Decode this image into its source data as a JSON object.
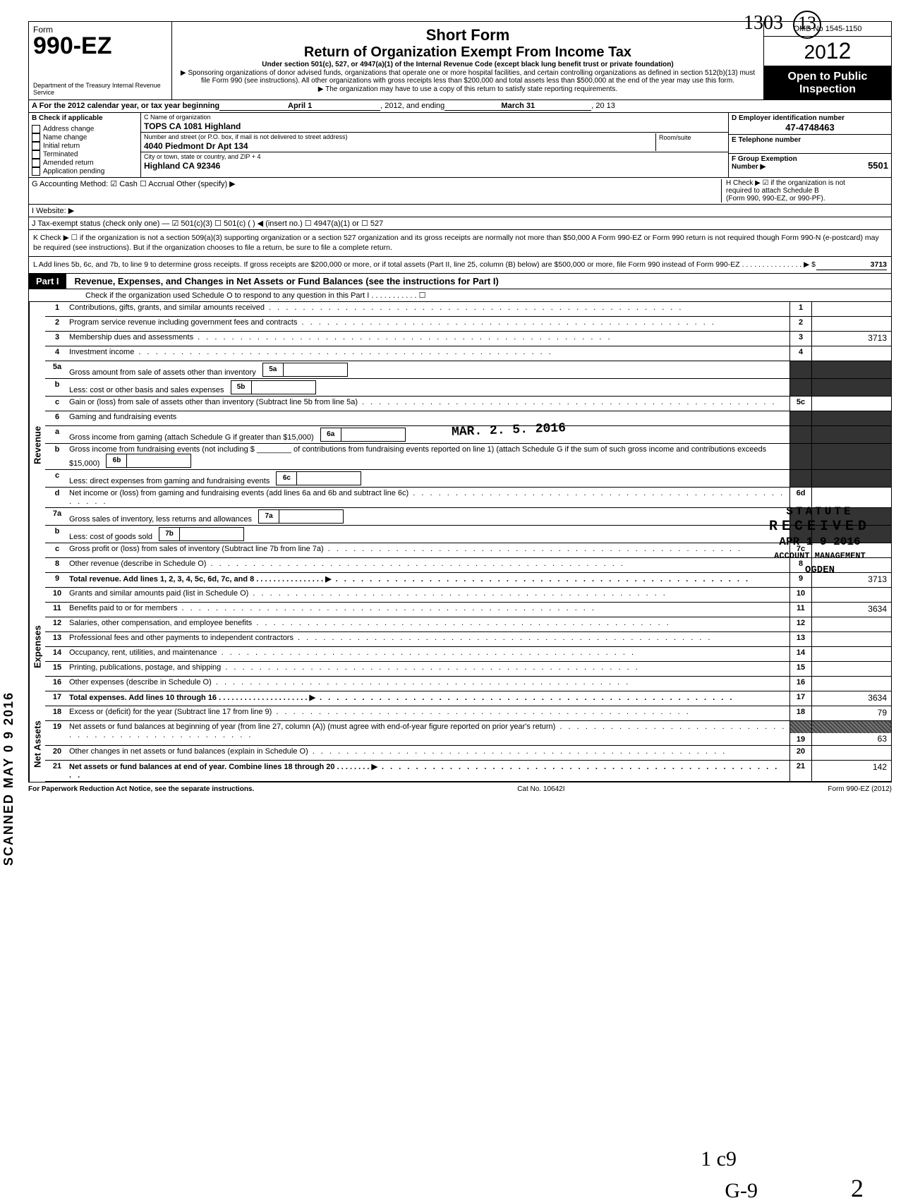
{
  "handwritten_top": "1303",
  "circled_page": "13",
  "form": {
    "label": "Form",
    "number": "990-EZ",
    "dept": "Department of the Treasury\nInternal Revenue Service",
    "short_form": "Short Form",
    "return_title": "Return of Organization Exempt From Income Tax",
    "subtitle1": "Under section 501(c), 527, or 4947(a)(1) of the Internal Revenue Code\n(except black lung benefit trust or private foundation)",
    "subtitle2": "▶ Sponsoring organizations of donor advised funds, organizations that operate one or more hospital facilities, and certain controlling organizations as defined in section 512(b)(13) must file Form 990 (see instructions). All other organizations with gross receipts less than $200,000 and total assets less than $500,000 at the end of the year may use this form.",
    "subtitle3": "▶ The organization may have to use a copy of this return to satisfy state reporting requirements.",
    "omb": "OMB No 1545-1150",
    "year_prefix": "20",
    "year": "12",
    "open1": "Open to Public",
    "open2": "Inspection"
  },
  "line_a": {
    "prefix": "A  For the 2012 calendar year, or tax year beginning",
    "begin": "April 1",
    "mid": ", 2012, and ending",
    "end": "March 31",
    "tail": ", 20  13"
  },
  "col_b": {
    "head": "B  Check if applicable",
    "opts": [
      "Address change",
      "Name change",
      "Initial return",
      "Terminated",
      "Amended return",
      "Application pending"
    ]
  },
  "col_c": {
    "name_label": "C  Name of organization",
    "name": "TOPS CA 1081 Highland",
    "addr_label": "Number and street (or P.O. box, if mail is not delivered to street address)",
    "addr": "4040 Piedmont Dr Apt 134",
    "city_label": "City or town, state or country, and ZIP + 4",
    "city": "Highland CA 92346",
    "room_label": "Room/suite"
  },
  "col_d": {
    "label": "D Employer identification number",
    "value": "47-4748463"
  },
  "col_e": {
    "label": "E  Telephone number",
    "value": ""
  },
  "col_f": {
    "label": "F  Group Exemption\n    Number ▶",
    "value": "5501"
  },
  "line_g": "G  Accounting Method:   ☑ Cash    ☐ Accrual    Other (specify) ▶",
  "line_h": "H  Check ▶ ☑ if the organization is not\nrequired to attach Schedule B\n(Form 990, 990-EZ, or 990-PF).",
  "line_i": "I   Website: ▶",
  "line_j": "J  Tax-exempt status (check only one) —  ☑ 501(c)(3)   ☐ 501(c) (      ) ◀ (insert no.)  ☐ 4947(a)(1) or   ☐ 527",
  "line_k": "K  Check ▶  ☐  if the organization is not a section 509(a)(3) supporting organization or a section 527 organization and its gross receipts are normally not more than $50,000  A Form 990-EZ or Form 990 return is not required though Form 990-N (e-postcard) may be required (see instructions). But if the organization chooses to file a return, be sure to file a complete return.",
  "line_l": {
    "text": "L  Add lines 5b, 6c, and 7b, to line 9 to determine gross receipts. If gross receipts are $200,000 or more, or if total assets (Part II, line 25, column (B) below) are $500,000 or more, file Form 990 instead of Form 990-EZ   . . . . . . . . . . . . . . . ▶  $",
    "value": "3713"
  },
  "part1": {
    "tag": "Part I",
    "title": "Revenue, Expenses, and Changes in Net Assets or Fund Balances (see the instructions for Part I)",
    "check": "Check if the organization used Schedule O to respond to any question in this Part I  . . . . . . . . . . . ☐"
  },
  "stamps": {
    "received1": "MAR. 2. 5. 2016",
    "statute": "STATUTE",
    "received": "RECEIVED",
    "date": "APR 1 9 2016",
    "acct": "ACCOUNT MANAGEMENT",
    "ogden": "OGDEN"
  },
  "side_scanned": "SCANNED  MAY 0 9 2016",
  "revenue": [
    {
      "n": "1",
      "d": "Contributions, gifts, grants, and similar amounts received",
      "r": "1",
      "v": ""
    },
    {
      "n": "2",
      "d": "Program service revenue including government fees and contracts",
      "r": "2",
      "v": ""
    },
    {
      "n": "3",
      "d": "Membership dues and assessments",
      "r": "3",
      "v": "3713"
    },
    {
      "n": "4",
      "d": "Investment income",
      "r": "4",
      "v": ""
    }
  ],
  "rev_5a": {
    "n": "5a",
    "d": "Gross amount from sale of assets other than inventory",
    "mn": "5a"
  },
  "rev_5b": {
    "n": "b",
    "d": "Less: cost or other basis and sales expenses",
    "mn": "5b"
  },
  "rev_5c": {
    "n": "c",
    "d": "Gain or (loss) from sale of assets other than inventory (Subtract line 5b from line 5a)",
    "r": "5c",
    "v": ""
  },
  "rev_6": {
    "n": "6",
    "d": "Gaming and fundraising events"
  },
  "rev_6a": {
    "n": "a",
    "d": "Gross income from gaming (attach Schedule G if greater than $15,000)",
    "mn": "6a"
  },
  "rev_6b": {
    "n": "b",
    "d": "Gross income from fundraising events (not including  $ ________ of contributions from fundraising events reported on line 1) (attach Schedule G if the sum of such gross income and contributions exceeds $15,000)",
    "mn": "6b"
  },
  "rev_6c": {
    "n": "c",
    "d": "Less: direct expenses from gaming and fundraising events",
    "mn": "6c"
  },
  "rev_6d": {
    "n": "d",
    "d": "Net income or (loss) from gaming and fundraising events (add lines 6a and 6b and subtract line 6c)",
    "r": "6d",
    "v": ""
  },
  "rev_7a": {
    "n": "7a",
    "d": "Gross sales of inventory, less returns and allowances",
    "mn": "7a"
  },
  "rev_7b": {
    "n": "b",
    "d": "Less: cost of goods sold",
    "mn": "7b"
  },
  "rev_7c": {
    "n": "c",
    "d": "Gross profit or (loss) from sales of inventory (Subtract line 7b from line 7a)",
    "r": "7c",
    "v": ""
  },
  "rev_8": {
    "n": "8",
    "d": "Other revenue (describe in Schedule O)",
    "r": "8",
    "v": ""
  },
  "rev_9": {
    "n": "9",
    "d": "Total revenue. Add lines 1, 2, 3, 4, 5c, 6d, 7c, and 8   . . . . . . . . . . . . . . . . ▶",
    "r": "9",
    "v": "3713",
    "bold": true
  },
  "expenses": [
    {
      "n": "10",
      "d": "Grants and similar amounts paid (list in Schedule O)",
      "r": "10",
      "v": ""
    },
    {
      "n": "11",
      "d": "Benefits paid to or for members",
      "r": "11",
      "v": "3634"
    },
    {
      "n": "12",
      "d": "Salaries, other compensation, and employee benefits",
      "r": "12",
      "v": ""
    },
    {
      "n": "13",
      "d": "Professional fees and other payments to independent contractors",
      "r": "13",
      "v": ""
    },
    {
      "n": "14",
      "d": "Occupancy, rent, utilities, and maintenance",
      "r": "14",
      "v": ""
    },
    {
      "n": "15",
      "d": "Printing, publications, postage, and shipping",
      "r": "15",
      "v": ""
    },
    {
      "n": "16",
      "d": "Other expenses (describe in Schedule O)",
      "r": "16",
      "v": ""
    },
    {
      "n": "17",
      "d": "Total expenses. Add lines 10 through 16   . . . . . . . . . . . . . . . . . . . . . ▶",
      "r": "17",
      "v": "3634",
      "bold": true
    }
  ],
  "netassets": [
    {
      "n": "18",
      "d": "Excess or (deficit) for the year (Subtract line 17 from line 9)",
      "r": "18",
      "v": "79"
    },
    {
      "n": "19",
      "d": "Net assets or fund balances at beginning of year (from line 27, column (A)) (must agree with end-of-year figure reported on prior year's return)",
      "r": "19",
      "v": "63",
      "tall": true
    },
    {
      "n": "20",
      "d": "Other changes in net assets or fund balances (explain in Schedule O)",
      "r": "20",
      "v": ""
    },
    {
      "n": "21",
      "d": "Net assets or fund balances at end of year. Combine lines 18 through 20   . . . . . . . . ▶",
      "r": "21",
      "v": "142",
      "bold": true
    }
  ],
  "footer": {
    "left": "For Paperwork Reduction Act Notice, see the separate instructions.",
    "mid": "Cat No. 10642I",
    "right": "Form 990-EZ (2012)"
  },
  "bottom_hand": {
    "g9": "G-9",
    "two": "2",
    "one_cq": "1 c9"
  }
}
